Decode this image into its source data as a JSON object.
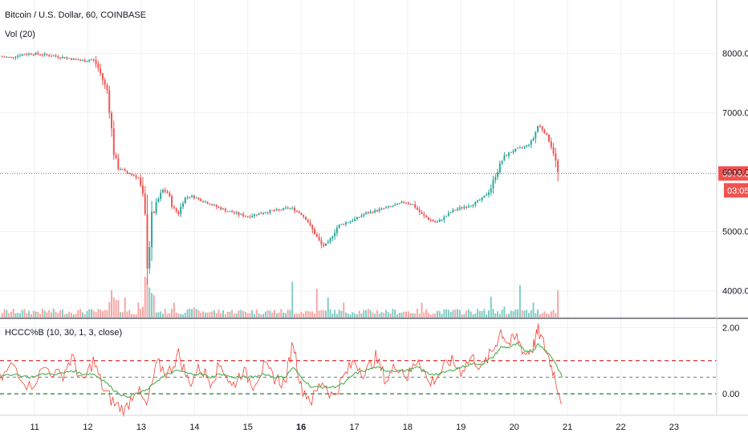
{
  "header": {
    "title": "Bitcoin / U.S. Dollar, 60, COINBASE",
    "volume_label": "Vol (20)"
  },
  "indicator": {
    "label": "HCCC%B (10, 30, 1, 3, close)"
  },
  "colors": {
    "up": "#26a69a",
    "down": "#ef5350",
    "up_volume": "#80cbc4",
    "down_volume": "#f5a6a4",
    "price_line": "#ef5350",
    "indicator_fast": "#f44336",
    "indicator_slow": "#4caf50",
    "upper_band": "#d32f2f",
    "lower_band": "#2e7d32",
    "middle_band": "#787b86",
    "grid": "#eef0f3"
  },
  "chart_data": [
    {
      "type": "candlestick",
      "title": "Bitcoin / U.S. Dollar, 60, COINBASE",
      "x_ticks": [
        "11",
        "12",
        "13",
        "14",
        "15",
        "16",
        "17",
        "18",
        "19",
        "20",
        "21",
        "22",
        "23"
      ],
      "x_tick_day": [
        11,
        12,
        13,
        14,
        15,
        16,
        17,
        18,
        19,
        20,
        21,
        22,
        23
      ],
      "x_range_days": [
        10.35,
        23.8
      ],
      "y_ticks": [
        "8000.00",
        "7000.00",
        "6000.00",
        "5000.00",
        "4000.00"
      ],
      "y_tick_values": [
        8000,
        7000,
        6000,
        5000,
        4000
      ],
      "y_range": [
        3550,
        8900
      ],
      "last_price": "5976.83",
      "countdown": "03:05",
      "close_path": [
        [
          10.35,
          7950
        ],
        [
          10.55,
          7930
        ],
        [
          10.75,
          7980
        ],
        [
          10.95,
          8000
        ],
        [
          11.15,
          7980
        ],
        [
          11.35,
          7960
        ],
        [
          11.55,
          7930
        ],
        [
          11.75,
          7900
        ],
        [
          11.95,
          7870
        ],
        [
          12.05,
          7900
        ],
        [
          12.12,
          7880
        ],
        [
          12.22,
          7700
        ],
        [
          12.32,
          7450
        ],
        [
          12.38,
          7350
        ],
        [
          12.42,
          6900
        ],
        [
          12.48,
          6400
        ],
        [
          12.55,
          6100
        ],
        [
          12.7,
          6000
        ],
        [
          12.85,
          5950
        ],
        [
          12.95,
          5900
        ],
        [
          13.05,
          5500
        ],
        [
          13.12,
          4500
        ],
        [
          13.2,
          5200
        ],
        [
          13.3,
          5500
        ],
        [
          13.4,
          5700
        ],
        [
          13.5,
          5650
        ],
        [
          13.6,
          5400
        ],
        [
          13.7,
          5300
        ],
        [
          13.8,
          5550
        ],
        [
          13.9,
          5600
        ],
        [
          14.0,
          5580
        ],
        [
          14.2,
          5500
        ],
        [
          14.4,
          5420
        ],
        [
          14.6,
          5350
        ],
        [
          14.8,
          5300
        ],
        [
          15.0,
          5250
        ],
        [
          15.2,
          5300
        ],
        [
          15.4,
          5340
        ],
        [
          15.6,
          5360
        ],
        [
          15.75,
          5400
        ],
        [
          15.85,
          5380
        ],
        [
          16.0,
          5300
        ],
        [
          16.1,
          5200
        ],
        [
          16.2,
          5050
        ],
        [
          16.3,
          4900
        ],
        [
          16.4,
          4750
        ],
        [
          16.5,
          4800
        ],
        [
          16.6,
          4950
        ],
        [
          16.7,
          5100
        ],
        [
          16.85,
          5150
        ],
        [
          17.0,
          5200
        ],
        [
          17.2,
          5300
        ],
        [
          17.4,
          5350
        ],
        [
          17.6,
          5400
        ],
        [
          17.8,
          5450
        ],
        [
          17.95,
          5500
        ],
        [
          18.1,
          5450
        ],
        [
          18.25,
          5300
        ],
        [
          18.4,
          5200
        ],
        [
          18.55,
          5150
        ],
        [
          18.7,
          5250
        ],
        [
          18.85,
          5350
        ],
        [
          19.0,
          5400
        ],
        [
          19.2,
          5450
        ],
        [
          19.4,
          5550
        ],
        [
          19.55,
          5700
        ],
        [
          19.65,
          5950
        ],
        [
          19.8,
          6250
        ],
        [
          19.95,
          6350
        ],
        [
          20.1,
          6400
        ],
        [
          20.25,
          6450
        ],
        [
          20.35,
          6550
        ],
        [
          20.45,
          6800
        ],
        [
          20.55,
          6700
        ],
        [
          20.65,
          6550
        ],
        [
          20.75,
          6300
        ],
        [
          20.82,
          5976.83
        ]
      ],
      "volume": {
        "label": "Vol (20)",
        "spikes": [
          [
            12.45,
            0.55
          ],
          [
            12.55,
            0.35
          ],
          [
            12.7,
            0.4
          ],
          [
            12.95,
            0.3
          ],
          [
            13.08,
            0.82
          ],
          [
            13.15,
            0.6
          ],
          [
            13.25,
            0.45
          ],
          [
            13.6,
            0.3
          ],
          [
            14.0,
            0.2
          ],
          [
            15.85,
            0.72
          ],
          [
            16.3,
            0.58
          ],
          [
            16.5,
            0.4
          ],
          [
            16.8,
            0.3
          ],
          [
            18.25,
            0.3
          ],
          [
            19.55,
            0.42
          ],
          [
            19.8,
            0.22
          ],
          [
            20.1,
            0.65
          ],
          [
            20.35,
            0.3
          ],
          [
            20.82,
            0.55
          ]
        ]
      }
    },
    {
      "type": "line",
      "title": "HCCC%B (10, 30, 1, 3, close)",
      "y_ticks": [
        "2.00",
        "0.00"
      ],
      "y_tick_values": [
        2.0,
        0.0
      ],
      "y_range": [
        -0.65,
        2.25
      ],
      "bands": {
        "upper": 1.0,
        "middle": 0.5,
        "lower": 0.0
      },
      "series": [
        {
          "role": "fast",
          "x": [
            10.35,
            10.6,
            10.9,
            11.2,
            11.5,
            11.7,
            11.9,
            12.1,
            12.3,
            12.5,
            12.7,
            12.9,
            13.1,
            13.3,
            13.5,
            13.7,
            13.9,
            14.1,
            14.3,
            14.5,
            14.7,
            14.9,
            15.1,
            15.3,
            15.5,
            15.7,
            15.85,
            16.0,
            16.2,
            16.4,
            16.6,
            16.8,
            17.0,
            17.2,
            17.4,
            17.6,
            17.8,
            18.0,
            18.2,
            18.4,
            18.6,
            18.8,
            19.0,
            19.2,
            19.4,
            19.6,
            19.75,
            19.9,
            20.05,
            20.2,
            20.35,
            20.45,
            20.6,
            20.75,
            20.9
          ],
          "values": [
            0.4,
            0.9,
            0.2,
            0.8,
            0.5,
            1.1,
            0.3,
            1.0,
            0.1,
            -0.3,
            -0.5,
            0.2,
            -0.4,
            0.9,
            0.6,
            1.2,
            0.3,
            0.8,
            0.4,
            0.9,
            0.2,
            0.7,
            0.3,
            0.8,
            0.5,
            0.3,
            1.6,
            0.2,
            -0.2,
            0.4,
            -0.1,
            0.5,
            1.0,
            0.6,
            1.1,
            0.4,
            0.9,
            0.5,
            1.1,
            0.3,
            0.6,
            1.0,
            0.7,
            1.1,
            0.8,
            1.3,
            1.9,
            1.5,
            1.7,
            1.2,
            1.4,
            1.9,
            1.3,
            0.6,
            -0.3
          ]
        },
        {
          "role": "slow",
          "x": [
            10.35,
            10.6,
            10.9,
            11.2,
            11.5,
            11.7,
            11.9,
            12.1,
            12.3,
            12.5,
            12.7,
            12.9,
            13.1,
            13.3,
            13.5,
            13.7,
            13.9,
            14.1,
            14.3,
            14.5,
            14.7,
            14.9,
            15.1,
            15.3,
            15.5,
            15.7,
            15.85,
            16.0,
            16.2,
            16.4,
            16.6,
            16.8,
            17.0,
            17.2,
            17.4,
            17.6,
            17.8,
            18.0,
            18.2,
            18.4,
            18.6,
            18.8,
            19.0,
            19.2,
            19.4,
            19.6,
            19.75,
            19.9,
            20.05,
            20.2,
            20.35,
            20.45,
            20.6,
            20.75,
            20.9
          ],
          "values": [
            0.5,
            0.6,
            0.5,
            0.6,
            0.6,
            0.7,
            0.6,
            0.6,
            0.4,
            0.1,
            -0.1,
            0.0,
            0.1,
            0.4,
            0.6,
            0.7,
            0.6,
            0.6,
            0.5,
            0.6,
            0.5,
            0.5,
            0.5,
            0.6,
            0.5,
            0.5,
            0.8,
            0.5,
            0.2,
            0.2,
            0.2,
            0.3,
            0.6,
            0.7,
            0.8,
            0.7,
            0.7,
            0.7,
            0.8,
            0.6,
            0.6,
            0.7,
            0.8,
            0.9,
            0.9,
            1.1,
            1.4,
            1.4,
            1.5,
            1.3,
            1.3,
            1.5,
            1.3,
            1.0,
            0.5
          ]
        }
      ]
    }
  ]
}
